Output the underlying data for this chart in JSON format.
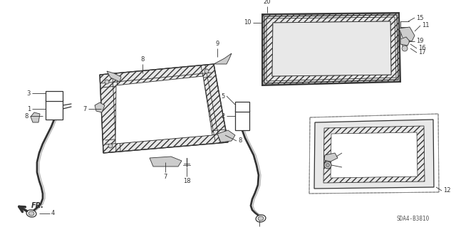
{
  "bg_color": "#ffffff",
  "line_color": "#333333",
  "hatch_color": "#555555",
  "fill_light": "#e8e8e8",
  "fill_mid": "#cccccc",
  "fill_dark": "#aaaaaa",
  "watermark": "SDA4-B3810",
  "label_fs": 6.0,
  "lw_main": 0.9,
  "lw_thin": 0.6,
  "lw_thick": 1.4
}
